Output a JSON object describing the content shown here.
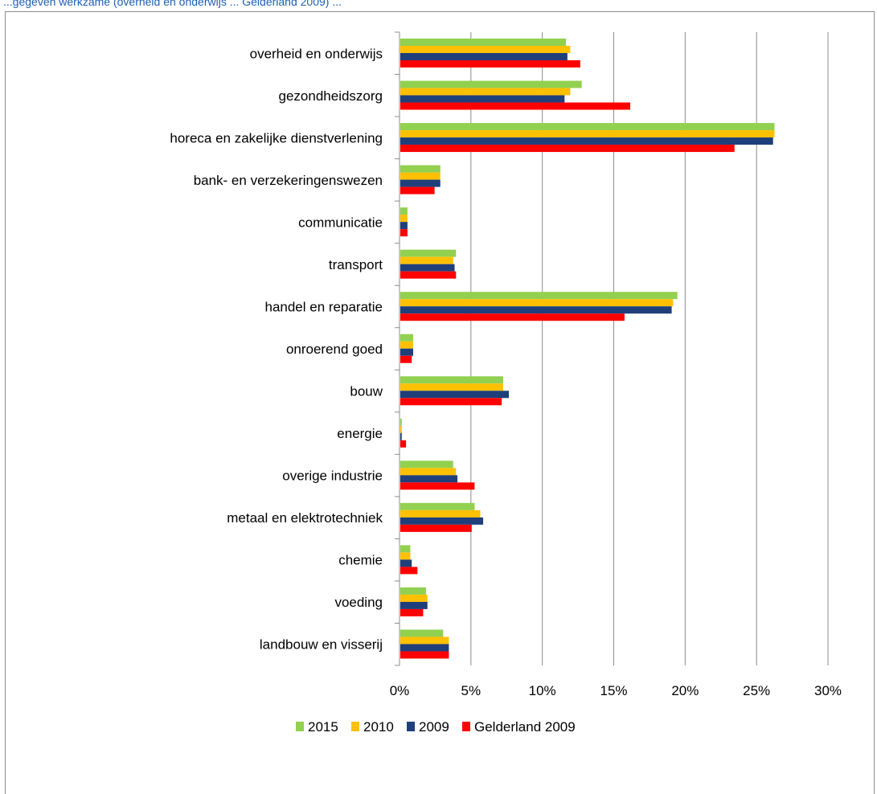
{
  "header_text": "...gegeven werkzame (overheid en onderwijs ... Gelderland 2009) ...",
  "chart_data": {
    "type": "bar",
    "orientation": "horizontal",
    "categories": [
      "overheid en onderwijs",
      "gezondheidszorg",
      "horeca en zakelijke dienstverlening",
      "bank- en verzekeringenswezen",
      "communicatie",
      "transport",
      "handel en reparatie",
      "onroerend goed",
      "bouw",
      "energie",
      "overige industrie",
      "metaal en elektrotechniek",
      "chemie",
      "voeding",
      "landbouw en visserij"
    ],
    "series": [
      {
        "name": "2015",
        "color": "#92d050",
        "values": [
          11.6,
          12.7,
          26.2,
          2.8,
          0.5,
          3.9,
          19.4,
          0.9,
          7.2,
          0.1,
          3.7,
          5.2,
          0.7,
          1.8,
          3.0
        ]
      },
      {
        "name": "2010",
        "color": "#ffc000",
        "values": [
          11.9,
          11.9,
          26.2,
          2.8,
          0.5,
          3.7,
          19.1,
          0.9,
          7.2,
          0.1,
          3.9,
          5.6,
          0.7,
          1.9,
          3.4
        ]
      },
      {
        "name": "2009",
        "color": "#1f3f7a",
        "values": [
          11.7,
          11.5,
          26.1,
          2.8,
          0.5,
          3.8,
          19.0,
          0.9,
          7.6,
          0.1,
          4.0,
          5.8,
          0.8,
          1.9,
          3.4
        ]
      },
      {
        "name": "Gelderland 2009",
        "color": "#ff0000",
        "values": [
          12.6,
          16.1,
          23.4,
          2.4,
          0.5,
          3.9,
          15.7,
          0.8,
          7.1,
          0.4,
          5.2,
          5.0,
          1.2,
          1.6,
          3.4
        ]
      }
    ],
    "xlim": [
      0,
      30
    ],
    "ticks": [
      "0%",
      "5%",
      "10%",
      "15%",
      "20%",
      "25%",
      "30%"
    ],
    "grid": true,
    "legend_position": "bottom"
  }
}
